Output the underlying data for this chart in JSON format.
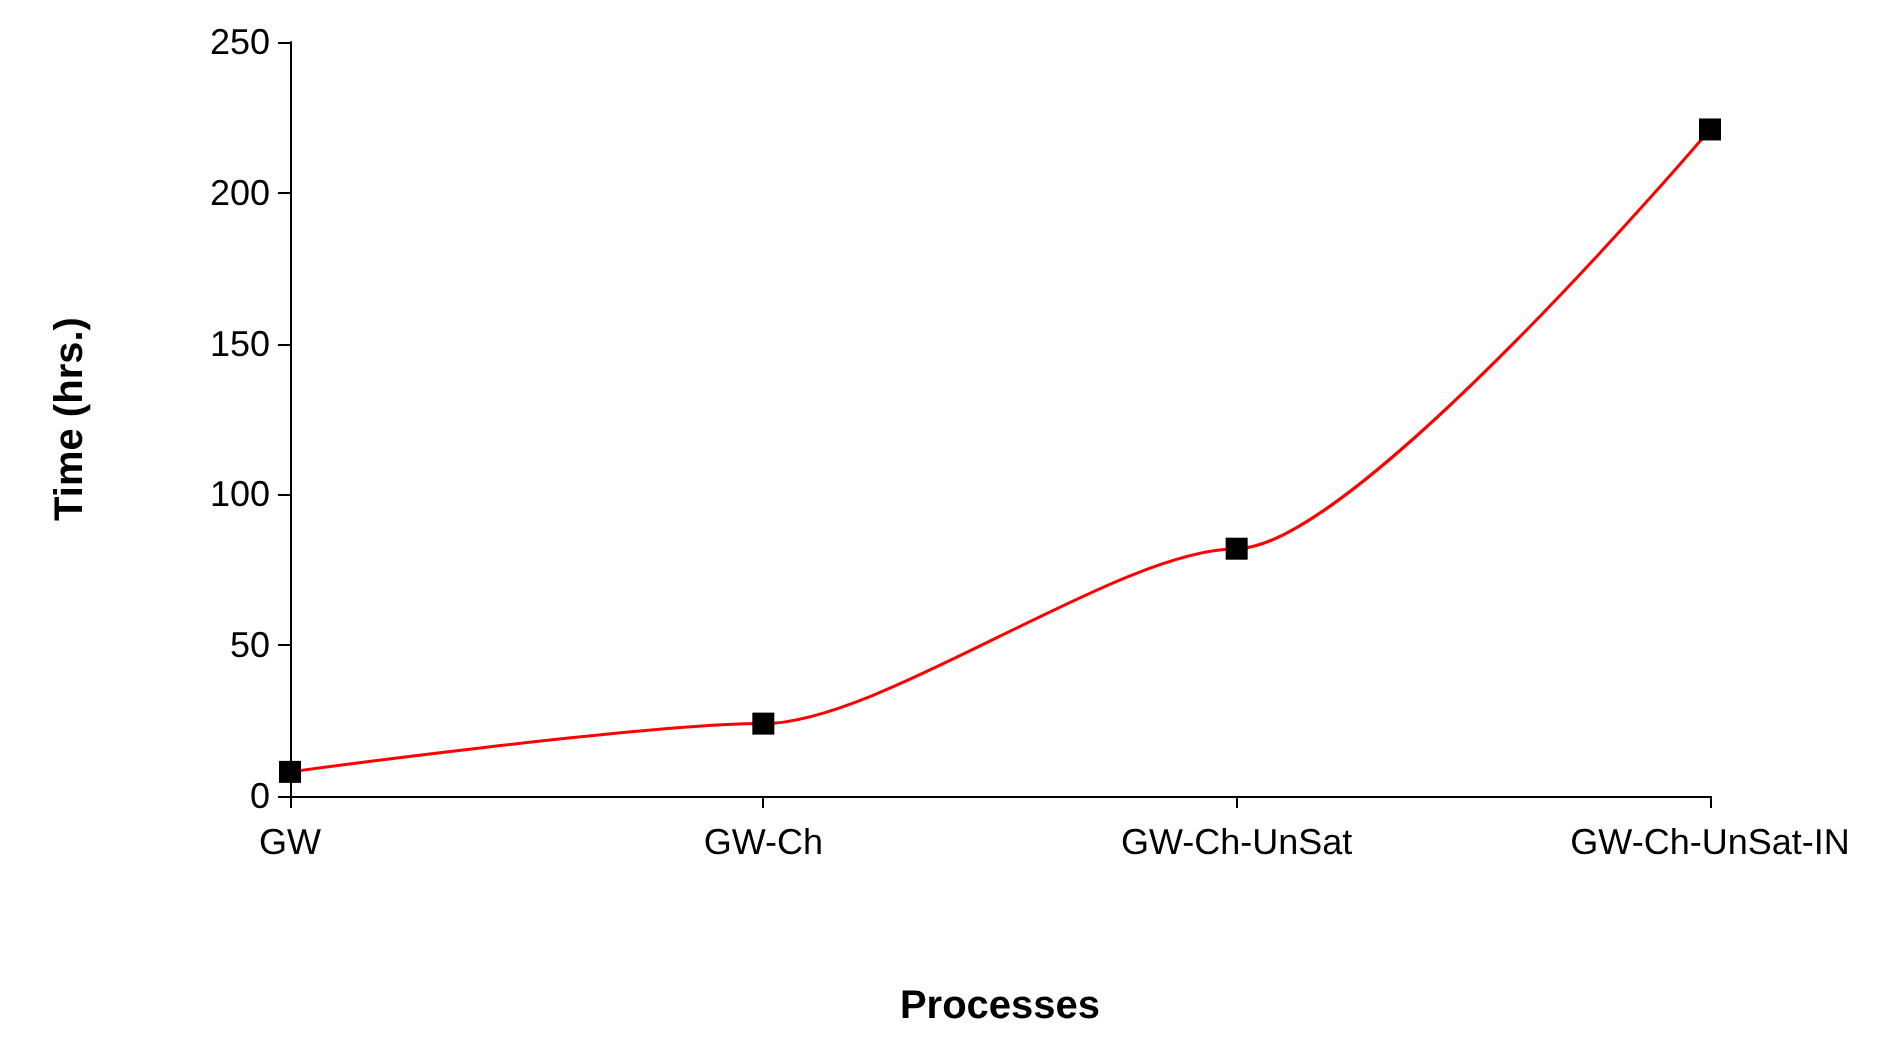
{
  "chart_data": {
    "type": "line",
    "xlabel": "Processes",
    "ylabel": "Time (hrs.)",
    "categories": [
      "GW",
      "GW-Ch",
      "GW-Ch-UnSat",
      "GW-Ch-UnSat-IN"
    ],
    "series": [
      {
        "color": "#ff0000",
        "values": [
          8,
          24,
          82,
          221
        ]
      }
    ],
    "ylim": [
      0,
      250
    ],
    "yticks": [
      0,
      50,
      100,
      150,
      200,
      250
    ],
    "grid": false,
    "marker": "square",
    "line_style": "solid"
  }
}
